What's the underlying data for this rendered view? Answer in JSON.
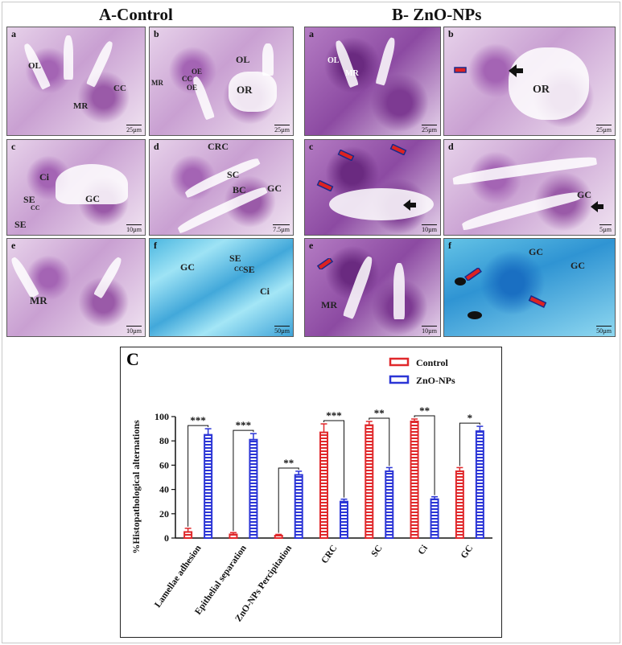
{
  "figure": {
    "group_a_title": "A-Control",
    "group_b_title": "B- ZnO-NPs",
    "panels_a": [
      {
        "letter": "a",
        "scale": "25µm",
        "labels": [
          "OL",
          "MR",
          "CC"
        ]
      },
      {
        "letter": "b",
        "scale": "25µm",
        "labels": [
          "OL",
          "OR",
          "MR",
          "OE",
          "CC",
          "OE"
        ]
      },
      {
        "letter": "c",
        "scale": "10µm",
        "labels": [
          "Ci",
          "GC",
          "SE",
          "CC",
          "SE"
        ]
      },
      {
        "letter": "d",
        "scale": "7.5µm",
        "labels": [
          "CRC",
          "SC",
          "BC",
          "GC"
        ]
      },
      {
        "letter": "e",
        "scale": "10µm",
        "labels": [
          "MR"
        ]
      },
      {
        "letter": "f",
        "scale": "50µm",
        "labels": [
          "GC",
          "SE",
          "CC",
          "SE",
          "Ci"
        ]
      }
    ],
    "panels_b": [
      {
        "letter": "a",
        "scale": "25µm",
        "labels": [
          "OL",
          "MR"
        ]
      },
      {
        "letter": "b",
        "scale": "25µm",
        "labels": [
          "OR"
        ]
      },
      {
        "letter": "c",
        "scale": "10µm",
        "labels": []
      },
      {
        "letter": "d",
        "scale": "5µm",
        "labels": [
          "GC"
        ]
      },
      {
        "letter": "e",
        "scale": "10µm",
        "labels": [
          "MR"
        ]
      },
      {
        "letter": "f",
        "scale": "50µm",
        "labels": [
          "GC",
          "GC"
        ]
      }
    ],
    "chart_letter": "C"
  },
  "chart_data": {
    "type": "bar",
    "ylabel": "%Histopathological alternations",
    "ylim": [
      0,
      100
    ],
    "yticks": [
      0,
      20,
      40,
      60,
      80,
      100
    ],
    "categories": [
      "Lamellae adhesion",
      "Epithelial separation",
      "ZnO-NPs Percipitation",
      "CRC",
      "SC",
      "Ci",
      "GC"
    ],
    "series": [
      {
        "name": "Control",
        "color": "#e0282b",
        "values": [
          5,
          3,
          2,
          87,
          93,
          96,
          55
        ],
        "errors": [
          3,
          1.5,
          1,
          7,
          3,
          2,
          3
        ]
      },
      {
        "name": "ZnO-NPs",
        "color": "#2b35d6",
        "values": [
          85,
          81,
          52,
          30,
          55,
          32,
          88
        ],
        "errors": [
          5,
          5,
          3,
          2,
          3,
          2,
          4
        ]
      }
    ],
    "significance": [
      "***",
      "***",
      "**",
      "***",
      "**",
      "**",
      "*"
    ],
    "legend_position": "top-right"
  }
}
